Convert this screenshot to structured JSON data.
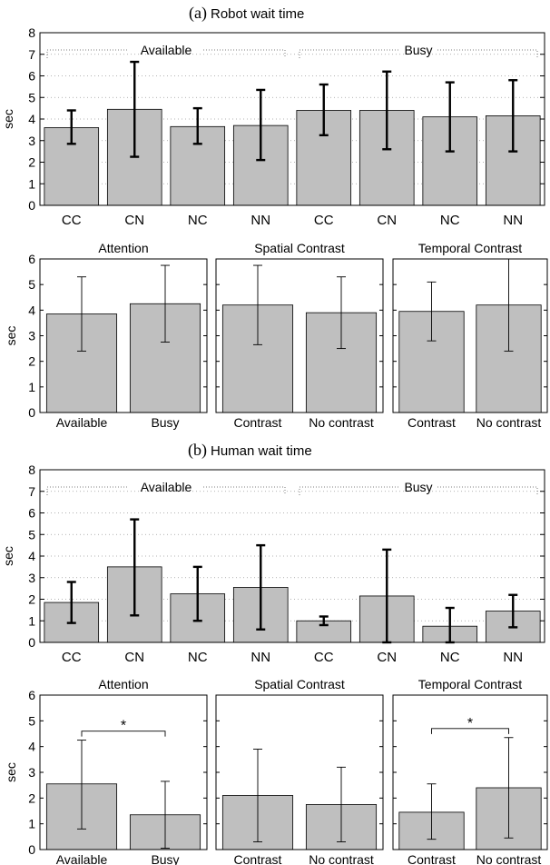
{
  "chart_data": [
    {
      "type": "bar",
      "panel_letter": "(a)",
      "title": "Robot wait time",
      "ylabel": "sec",
      "ylim": [
        0,
        8
      ],
      "yticks": [
        0,
        1,
        2,
        3,
        4,
        5,
        6,
        7,
        8
      ],
      "grid": "dotted horizontal",
      "groups": [
        "Available",
        "Busy"
      ],
      "categories": [
        "CC",
        "CN",
        "NC",
        "NN",
        "CC",
        "CN",
        "NC",
        "NN"
      ],
      "values": [
        3.6,
        4.45,
        3.65,
        3.7,
        4.4,
        4.4,
        4.1,
        4.15
      ],
      "error_low": [
        2.85,
        2.25,
        2.85,
        2.1,
        3.25,
        2.6,
        2.5,
        2.5
      ],
      "error_high": [
        4.4,
        6.65,
        4.5,
        5.35,
        5.6,
        6.2,
        5.7,
        5.8
      ]
    },
    {
      "type": "bar",
      "title": "Attention",
      "ylabel": "sec",
      "ylim": [
        0,
        6
      ],
      "yticks": [
        0,
        1,
        2,
        3,
        4,
        5,
        6
      ],
      "categories": [
        "Available",
        "Busy"
      ],
      "values": [
        3.85,
        4.25
      ],
      "error_low": [
        2.4,
        2.75
      ],
      "error_high": [
        5.3,
        5.75
      ]
    },
    {
      "type": "bar",
      "title": "Spatial Contrast",
      "ylim": [
        0,
        6
      ],
      "categories": [
        "Contrast",
        "No contrast"
      ],
      "values": [
        4.2,
        3.9
      ],
      "error_low": [
        2.65,
        2.5
      ],
      "error_high": [
        5.75,
        5.3
      ]
    },
    {
      "type": "bar",
      "title": "Temporal Contrast",
      "ylim": [
        0,
        6
      ],
      "categories": [
        "Contrast",
        "No contrast"
      ],
      "values": [
        3.95,
        4.2
      ],
      "error_low": [
        2.8,
        2.4
      ],
      "error_high": [
        5.1,
        6.0
      ]
    },
    {
      "type": "bar",
      "panel_letter": "(b)",
      "title": "Human wait time",
      "ylabel": "sec",
      "ylim": [
        0,
        8
      ],
      "yticks": [
        0,
        1,
        2,
        3,
        4,
        5,
        6,
        7,
        8
      ],
      "grid": "dotted horizontal",
      "groups": [
        "Available",
        "Busy"
      ],
      "categories": [
        "CC",
        "CN",
        "NC",
        "NN",
        "CC",
        "CN",
        "NC",
        "NN"
      ],
      "values": [
        1.85,
        3.5,
        2.25,
        2.55,
        1.0,
        2.15,
        0.75,
        1.45
      ],
      "error_low": [
        0.9,
        1.25,
        1.0,
        0.6,
        0.8,
        0.0,
        0.0,
        0.7
      ],
      "error_high": [
        2.8,
        5.7,
        3.5,
        4.5,
        1.2,
        4.3,
        1.6,
        2.2
      ]
    },
    {
      "type": "bar",
      "title": "Attention",
      "ylabel": "sec",
      "ylim": [
        0,
        6
      ],
      "yticks": [
        0,
        1,
        2,
        3,
        4,
        5,
        6
      ],
      "categories": [
        "Available",
        "Busy"
      ],
      "values": [
        2.55,
        1.35
      ],
      "error_low": [
        0.8,
        0.05
      ],
      "error_high": [
        4.25,
        2.65
      ],
      "significance": "*"
    },
    {
      "type": "bar",
      "title": "Spatial Contrast",
      "ylim": [
        0,
        6
      ],
      "categories": [
        "Contrast",
        "No contrast"
      ],
      "values": [
        2.1,
        1.75
      ],
      "error_low": [
        0.3,
        0.3
      ],
      "error_high": [
        3.9,
        3.2
      ]
    },
    {
      "type": "bar",
      "title": "Temporal Contrast",
      "ylim": [
        0,
        6
      ],
      "categories": [
        "Contrast",
        "No contrast"
      ],
      "values": [
        1.45,
        2.4
      ],
      "error_low": [
        0.4,
        0.45
      ],
      "error_high": [
        2.55,
        4.35
      ],
      "significance": "*"
    }
  ]
}
